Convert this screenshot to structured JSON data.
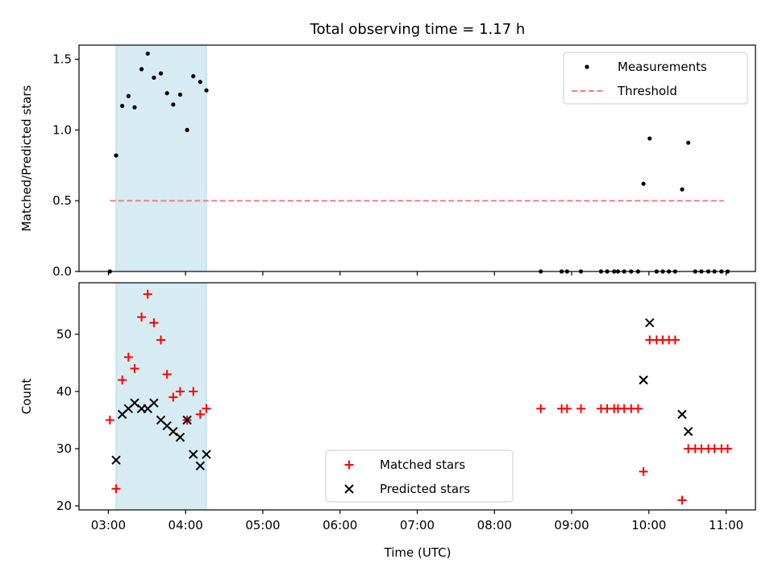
{
  "chart_data": {
    "type": "scatter",
    "title": "Total observing time = 1.17 h",
    "xlabel": "Time (UTC)",
    "x_tick_labels": [
      "03:00",
      "04:00",
      "05:00",
      "06:00",
      "07:00",
      "08:00",
      "09:00",
      "10:00",
      "11:00"
    ],
    "x_tick_hours": [
      3,
      4,
      5,
      6,
      7,
      8,
      9,
      10,
      11
    ],
    "xlim_hours": [
      2.62,
      11.38
    ],
    "shaded_span_hours": [
      3.1,
      4.27
    ],
    "shade_color": "#add8e6",
    "panels": [
      {
        "ylabel": "Matched/Predicted stars",
        "ylim": [
          0,
          1.6
        ],
        "y_ticks": [
          0.0,
          0.5,
          1.0,
          1.5
        ],
        "y_tick_labels": [
          "0.0",
          "0.5",
          "1.0",
          "1.5"
        ],
        "legend_position": "upper right",
        "legend": [
          "Measurements",
          "Threshold"
        ],
        "series": [
          {
            "name": "Measurements",
            "kind": "dot",
            "color": "#000000",
            "x_hours": [
              3.02,
              3.1,
              3.18,
              3.26,
              3.34,
              3.43,
              3.51,
              3.59,
              3.68,
              3.76,
              3.84,
              3.93,
              4.02,
              4.1,
              4.19,
              4.27,
              8.6,
              8.87,
              8.94,
              9.12,
              9.38,
              9.46,
              9.55,
              9.6,
              9.68,
              9.77,
              9.86,
              9.93,
              10.01,
              10.1,
              10.18,
              10.26,
              10.34,
              10.43,
              10.51,
              10.6,
              10.68,
              10.77,
              10.85,
              10.94,
              11.02
            ],
            "values": [
              0.0,
              0.82,
              1.17,
              1.24,
              1.16,
              1.43,
              1.54,
              1.37,
              1.4,
              1.26,
              1.18,
              1.25,
              1.0,
              1.38,
              1.34,
              1.28,
              0.0,
              0.0,
              0.0,
              0.0,
              0.0,
              0.0,
              0.0,
              0.0,
              0.0,
              0.0,
              0.0,
              0.62,
              0.94,
              0.0,
              0.0,
              0.0,
              0.0,
              0.58,
              0.91,
              0.0,
              0.0,
              0.0,
              0.0,
              0.0,
              0.0
            ]
          },
          {
            "name": "Threshold",
            "kind": "dashed-line",
            "color": "#f08080",
            "x_hours": [
              3.02,
              10.97
            ],
            "values": [
              0.5,
              0.5
            ]
          }
        ]
      },
      {
        "ylabel": "Count",
        "ylim": [
          19.3,
          59
        ],
        "y_ticks": [
          20,
          30,
          40,
          50
        ],
        "y_tick_labels": [
          "20",
          "30",
          "40",
          "50"
        ],
        "legend_position": "lower center",
        "legend": [
          "Matched stars",
          "Predicted stars"
        ],
        "series": [
          {
            "name": "Matched stars",
            "kind": "plus",
            "color": "#ff0000",
            "x_hours": [
              3.02,
              3.1,
              3.18,
              3.26,
              3.34,
              3.43,
              3.51,
              3.59,
              3.68,
              3.76,
              3.84,
              3.93,
              4.02,
              4.1,
              4.19,
              4.27,
              8.6,
              8.87,
              8.94,
              9.12,
              9.38,
              9.46,
              9.55,
              9.6,
              9.68,
              9.77,
              9.86,
              9.93,
              10.01,
              10.1,
              10.18,
              10.26,
              10.34,
              10.43,
              10.51,
              10.6,
              10.68,
              10.77,
              10.85,
              10.94,
              11.02
            ],
            "values": [
              35,
              23,
              42,
              46,
              44,
              53,
              57,
              52,
              49,
              43,
              39,
              40,
              35,
              40,
              36,
              37,
              37,
              37,
              37,
              37,
              37,
              37,
              37,
              37,
              37,
              37,
              37,
              26,
              49,
              49,
              49,
              49,
              49,
              21,
              30,
              30,
              30,
              30,
              30,
              30,
              30
            ]
          },
          {
            "name": "Predicted stars",
            "kind": "x",
            "color": "#000000",
            "x_hours": [
              3.1,
              3.18,
              3.26,
              3.34,
              3.43,
              3.51,
              3.59,
              3.68,
              3.76,
              3.84,
              3.93,
              4.02,
              4.1,
              4.19,
              4.27,
              9.93,
              10.01,
              10.43,
              10.51
            ],
            "values": [
              28,
              36,
              37,
              38,
              37,
              37,
              38,
              35,
              34,
              33,
              32,
              35,
              29,
              27,
              29,
              42,
              52,
              36,
              33
            ]
          }
        ]
      }
    ]
  }
}
